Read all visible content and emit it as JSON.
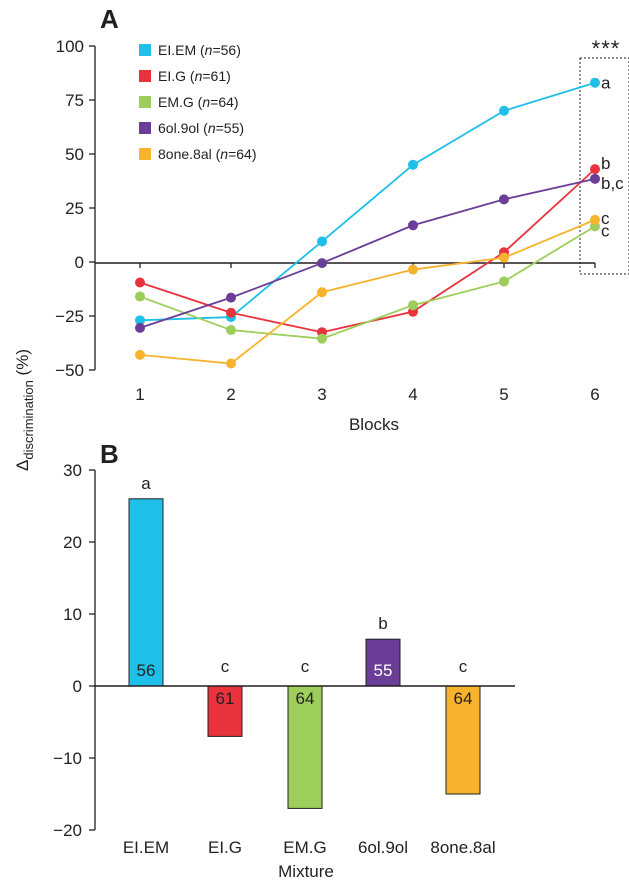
{
  "figure": {
    "shared_ylabel_main": "Δ",
    "shared_ylabel_sub": "discrimination",
    "shared_ylabel_unit": " (%)"
  },
  "colors": {
    "EI.EM": "#1ebfe9",
    "EI.G": "#e8333c",
    "EM.G": "#9dce5b",
    "6ol.9ol": "#6a3d98",
    "8one.8al": "#f7b32d",
    "axis": "#231f20"
  },
  "chart_data": [
    {
      "panel": "A",
      "type": "line",
      "xlabel": "Blocks",
      "ylabel": "",
      "x": [
        1,
        2,
        3,
        4,
        5,
        6
      ],
      "xticks": [
        "1",
        "2",
        "3",
        "4",
        "5",
        "6"
      ],
      "ylim": [
        -50,
        100
      ],
      "yticks": [
        "100",
        "75",
        "50",
        "25",
        "0",
        "−25",
        "−50"
      ],
      "grid": false,
      "legend_placement": "top-left",
      "significance_marker": "***",
      "series": [
        {
          "key": "EI.EM",
          "label_pre": "EI.EM (",
          "label_n": "n",
          "label_post": "=56)",
          "values": [
            -27,
            -25.5,
            9.5,
            45,
            70,
            83
          ],
          "end_letter": "a"
        },
        {
          "key": "EI.G",
          "label_pre": "EI.G (",
          "label_n": "n",
          "label_post": "=61)",
          "values": [
            -9.5,
            -23.5,
            -32.5,
            -23,
            4.5,
            43
          ],
          "end_letter": "b"
        },
        {
          "key": "EM.G",
          "label_pre": "EM.G (",
          "label_n": "n",
          "label_post": "=64)",
          "values": [
            -16,
            -31.5,
            -35.5,
            -20,
            -9,
            16.5
          ],
          "end_letter": "c"
        },
        {
          "key": "6ol.9ol",
          "label_pre": "6ol.9ol (",
          "label_n": "n",
          "label_post": "=55)",
          "values": [
            -30.5,
            -16.5,
            -0.5,
            17,
            29,
            38.5
          ],
          "end_letter": "b,c"
        },
        {
          "key": "8one.8al",
          "label_pre": "8one.8al (",
          "label_n": "n",
          "label_post": "=64)",
          "values": [
            -43,
            -47,
            -14,
            -3.5,
            2,
            19.5
          ],
          "end_letter": "c"
        }
      ]
    },
    {
      "panel": "B",
      "type": "bar",
      "xlabel": "Mixture",
      "ylabel": "",
      "categories": [
        "EI.EM",
        "EI.G",
        "EM.G",
        "6ol.9ol",
        "8one.8al"
      ],
      "values": [
        26,
        -7,
        -17,
        6.5,
        -15
      ],
      "counts": [
        "56",
        "61",
        "64",
        "55",
        "64"
      ],
      "letters": [
        "a",
        "c",
        "c",
        "b",
        "c"
      ],
      "ylim": [
        -20,
        30
      ],
      "yticks": [
        "30",
        "20",
        "10",
        "0",
        "−10",
        "−20"
      ],
      "grid": false
    }
  ]
}
